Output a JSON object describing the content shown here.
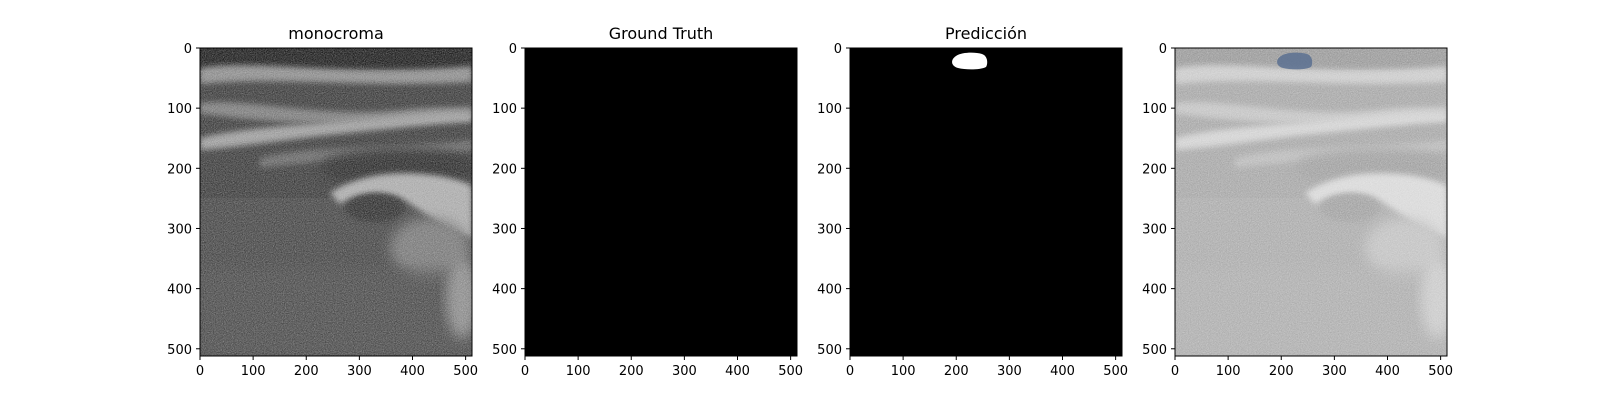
{
  "panels": [
    {
      "title": "monocroma",
      "image": "ultrasound grayscale frame",
      "xticks": [
        "0",
        "100",
        "200",
        "300",
        "400",
        "500"
      ],
      "yticks": [
        "0",
        "100",
        "200",
        "300",
        "400",
        "500"
      ]
    },
    {
      "title": "Ground Truth",
      "image": "empty binary mask",
      "xticks": [
        "0",
        "100",
        "200",
        "300",
        "400",
        "500"
      ],
      "yticks": [
        "0",
        "100",
        "200",
        "300",
        "400",
        "500"
      ]
    },
    {
      "title": "Predicción",
      "image": "binary mask with small blob near top",
      "xticks": [
        "0",
        "100",
        "200",
        "300",
        "400",
        "500"
      ],
      "yticks": [
        "0",
        "100",
        "200",
        "300",
        "400",
        "500"
      ]
    },
    {
      "title": "",
      "image": "ultrasound with blue overlay of prediction",
      "xticks": [
        "0",
        "100",
        "200",
        "300",
        "400",
        "500"
      ],
      "yticks": [
        "0",
        "100",
        "200",
        "300",
        "400",
        "500"
      ]
    }
  ],
  "image_extent": [
    0,
    512
  ],
  "prediction_blob_center": [
    220,
    20
  ],
  "colors": {
    "mask_background": "#000000",
    "mask_foreground": "#ffffff",
    "overlay": "#5a7090",
    "axis": "#000000"
  }
}
